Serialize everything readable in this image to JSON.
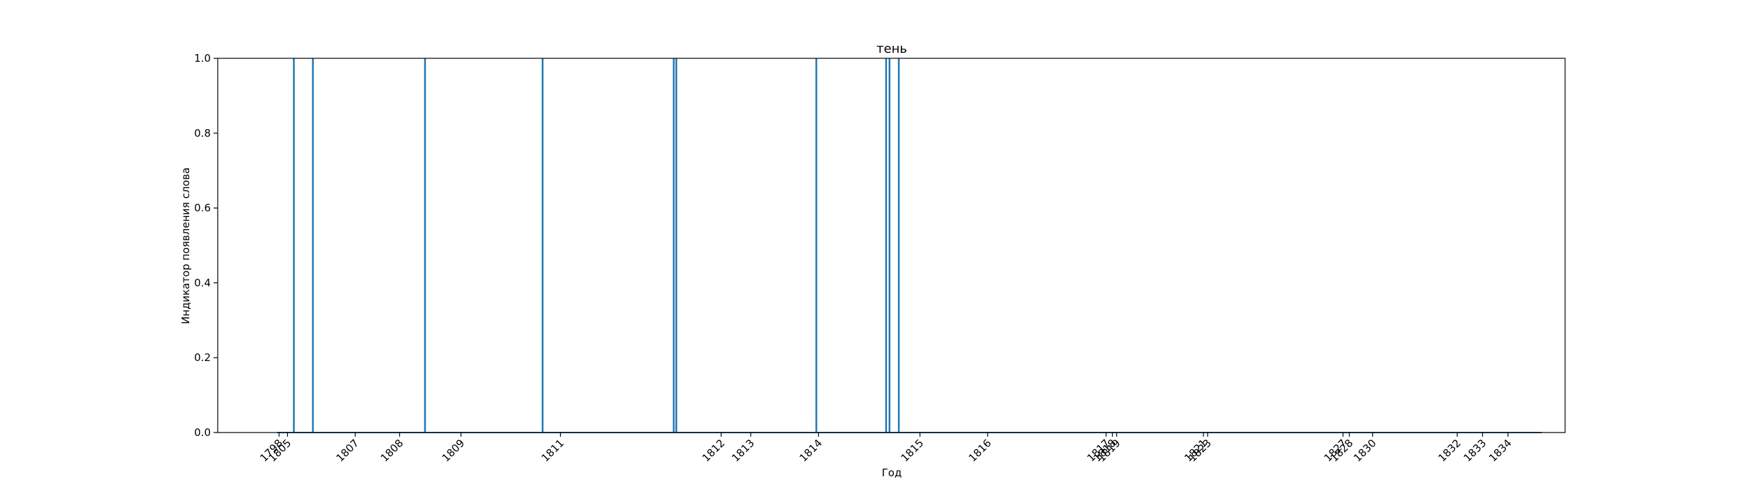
{
  "chart_data": {
    "type": "bar",
    "title": "тень",
    "xlabel": "Год",
    "ylabel": "Индикатор появления слова",
    "ylim": [
      0,
      1
    ],
    "xlim": [
      1803.6,
      1835.45
    ],
    "y_ticks": [
      "0.0",
      "0.2",
      "0.4",
      "0.6",
      "0.8",
      "1.0"
    ],
    "y_tick_values": [
      0,
      0.2,
      0.4,
      0.6,
      0.8,
      1.0
    ],
    "x_ticks": [
      {
        "label": "1798",
        "x": 1805.05
      },
      {
        "label": "1805",
        "x": 1805.25
      },
      {
        "label": "1807",
        "x": 1806.85
      },
      {
        "label": "1808",
        "x": 1807.9
      },
      {
        "label": "1809",
        "x": 1809.35
      },
      {
        "label": "1811",
        "x": 1811.7
      },
      {
        "label": "1812",
        "x": 1815.5
      },
      {
        "label": "1813",
        "x": 1816.2
      },
      {
        "label": "1814",
        "x": 1817.8
      },
      {
        "label": "1815",
        "x": 1820.2
      },
      {
        "label": "1816",
        "x": 1821.8
      },
      {
        "label": "1817",
        "x": 1824.6
      },
      {
        "label": "1818",
        "x": 1824.75
      },
      {
        "label": "1819",
        "x": 1824.85
      },
      {
        "label": "1821",
        "x": 1826.9
      },
      {
        "label": "1823",
        "x": 1827.0
      },
      {
        "label": "1827",
        "x": 1830.2
      },
      {
        "label": "1828",
        "x": 1830.35
      },
      {
        "label": "1830",
        "x": 1830.9
      },
      {
        "label": "1832",
        "x": 1832.9
      },
      {
        "label": "1833",
        "x": 1833.5
      },
      {
        "label": "1834",
        "x": 1834.1
      }
    ],
    "series": [
      {
        "x": [
          1805.4,
          1805.85,
          1808.5,
          1811.28,
          1814.38,
          1814.44,
          1817.75,
          1819.4,
          1819.48,
          1819.7
        ],
        "values": [
          1,
          1,
          1,
          1,
          1,
          1,
          1,
          1,
          1,
          1
        ]
      }
    ],
    "baseline": {
      "x": [
        1805.0,
        1834.9
      ],
      "value": 0
    },
    "colors": {
      "series": "#1f77b4",
      "axes": "#000000"
    },
    "grid": false
  }
}
